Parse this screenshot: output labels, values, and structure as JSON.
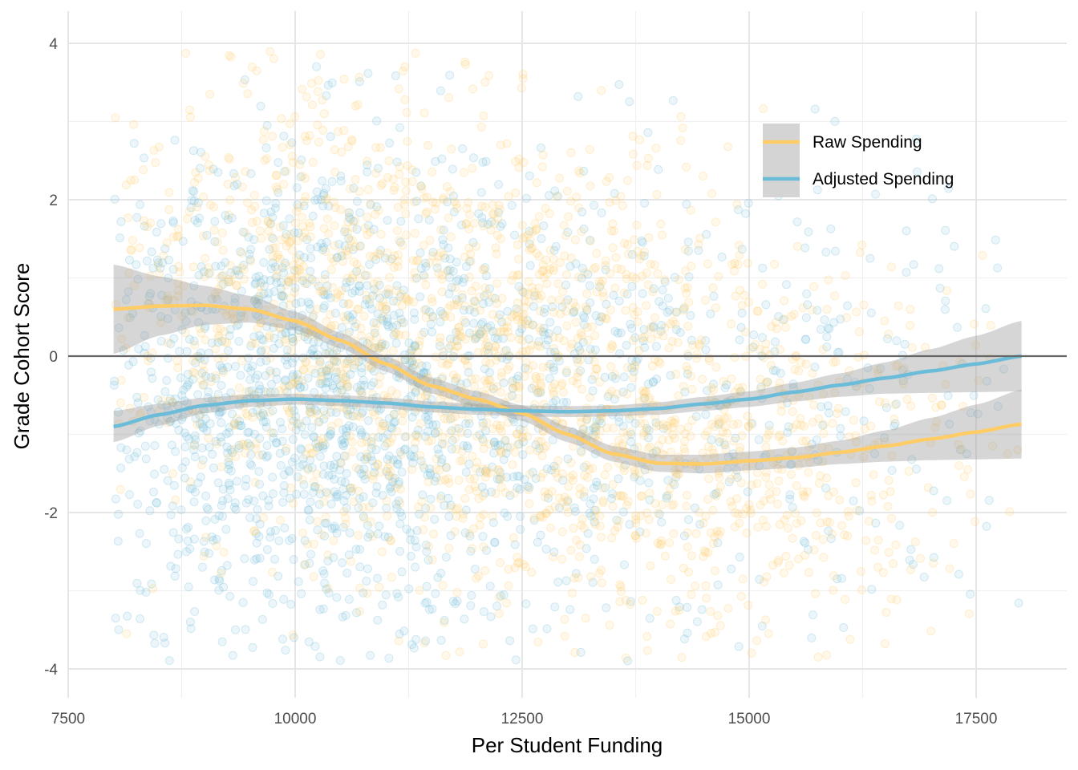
{
  "chart_data": {
    "type": "scatter",
    "title": "",
    "xlabel": "Per Student Funding",
    "ylabel": "Grade Cohort Score",
    "xlim": [
      7500,
      18500
    ],
    "ylim": [
      -4.35,
      4.4
    ],
    "x_ticks": [
      7500,
      10000,
      12500,
      15000,
      17500
    ],
    "y_ticks": [
      -4,
      -2,
      0,
      2,
      4
    ],
    "x_tick_labels": [
      "7500",
      "10000",
      "12500",
      "15000",
      "17500"
    ],
    "y_tick_labels": [
      "-4",
      "-2",
      "0",
      "2",
      "4"
    ],
    "grid": true,
    "reference_line_y": 0,
    "legend_position": "top-right",
    "legend": [
      "Raw Spending",
      "Adjusted Spending"
    ],
    "series": [
      {
        "name": "Raw Spending",
        "color": "#FFCC66",
        "smooth_x": [
          8000,
          8500,
          9000,
          9500,
          10000,
          10500,
          11000,
          11500,
          12000,
          12500,
          13000,
          13500,
          14000,
          14500,
          15000,
          15500,
          16000,
          16500,
          17000,
          17500,
          18000
        ],
        "smooth_y": [
          0.6,
          0.64,
          0.65,
          0.6,
          0.45,
          0.2,
          -0.1,
          -0.38,
          -0.55,
          -0.73,
          -1.0,
          -1.25,
          -1.37,
          -1.38,
          -1.34,
          -1.3,
          -1.23,
          -1.15,
          -1.06,
          -0.97,
          -0.87
        ],
        "ci_half_width": [
          0.57,
          0.38,
          0.25,
          0.17,
          0.12,
          0.1,
          0.1,
          0.1,
          0.1,
          0.1,
          0.1,
          0.1,
          0.11,
          0.12,
          0.12,
          0.13,
          0.15,
          0.2,
          0.27,
          0.35,
          0.44
        ],
        "points_x_range": [
          8000,
          18000
        ],
        "points_y_range": [
          -3.9,
          3.9
        ]
      },
      {
        "name": "Adjusted Spending",
        "color": "#6BBCD8",
        "smooth_x": [
          8000,
          8500,
          9000,
          9500,
          10000,
          10500,
          11000,
          11500,
          12000,
          12500,
          13000,
          13500,
          14000,
          14500,
          15000,
          15500,
          16000,
          16500,
          17000,
          17500,
          18000
        ],
        "smooth_y": [
          -0.9,
          -0.75,
          -0.63,
          -0.57,
          -0.55,
          -0.57,
          -0.6,
          -0.65,
          -0.68,
          -0.7,
          -0.71,
          -0.7,
          -0.67,
          -0.61,
          -0.55,
          -0.46,
          -0.37,
          -0.28,
          -0.19,
          -0.1,
          0.0
        ],
        "ci_half_width": [
          0.2,
          0.14,
          0.1,
          0.08,
          0.07,
          0.07,
          0.07,
          0.07,
          0.07,
          0.07,
          0.07,
          0.07,
          0.08,
          0.09,
          0.1,
          0.12,
          0.15,
          0.2,
          0.28,
          0.36,
          0.45
        ],
        "points_x_range": [
          8000,
          18000
        ],
        "points_y_range": [
          -3.9,
          3.9
        ]
      }
    ]
  }
}
